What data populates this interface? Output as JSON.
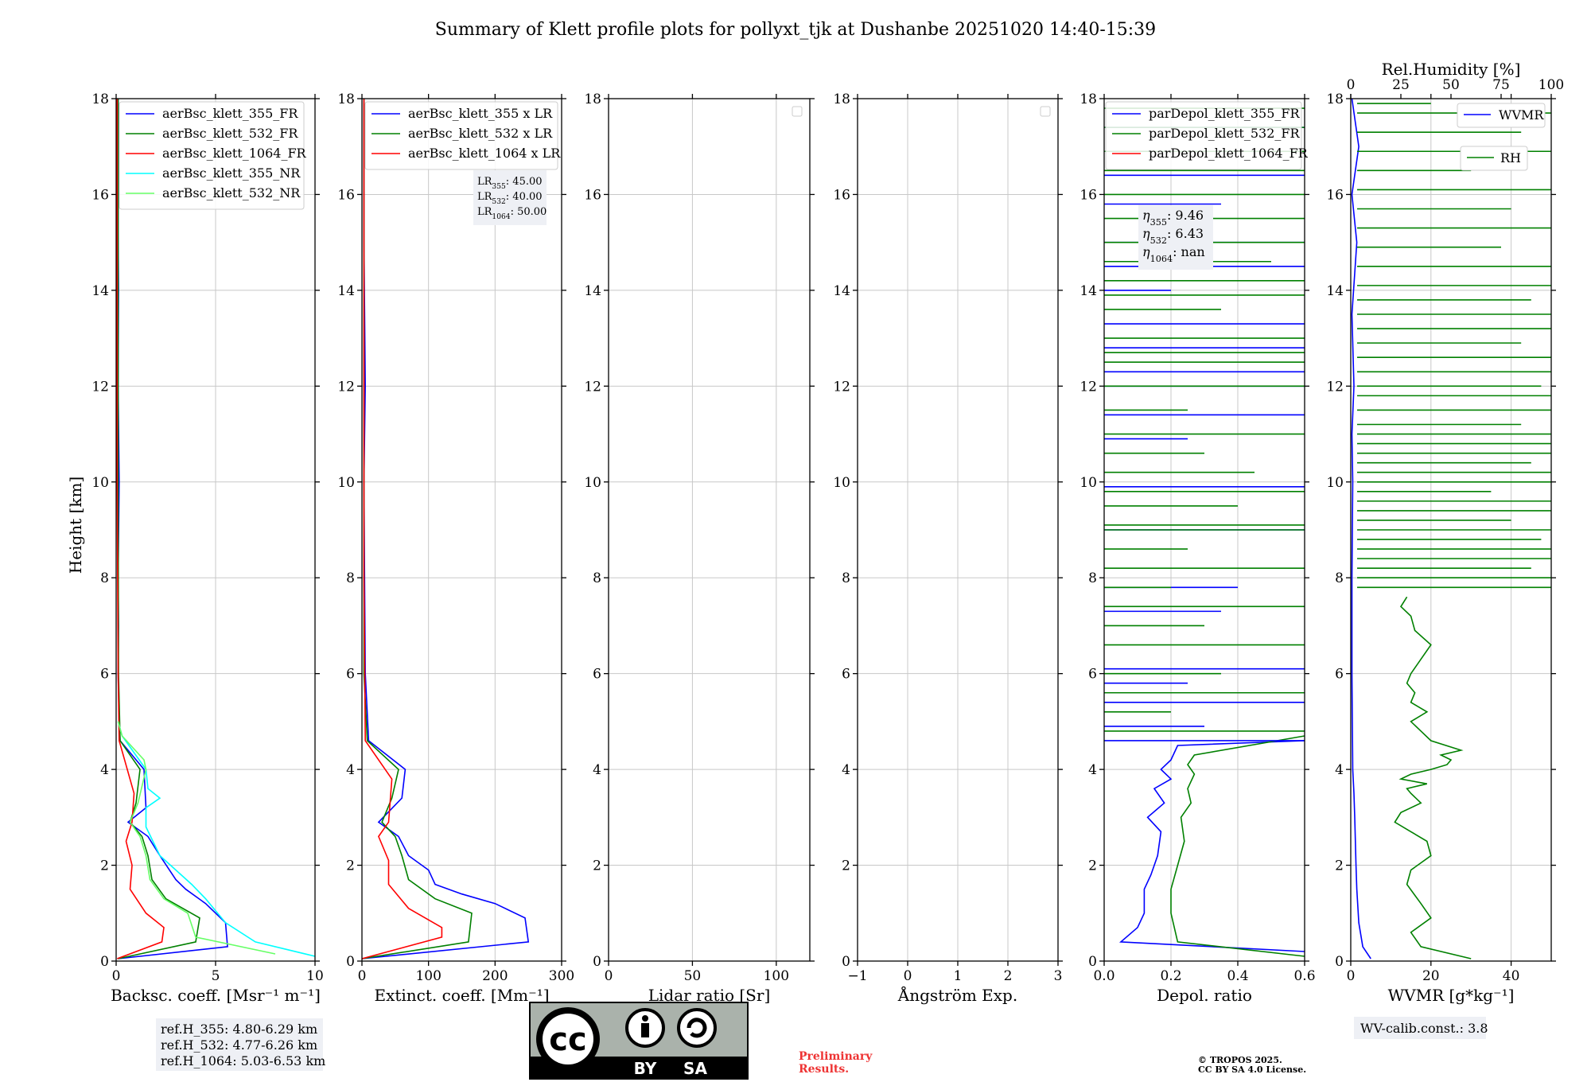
{
  "title": "Summary of Klett profile plots for pollyxt_tjk at Dushanbe 20251020 14:40-15:39",
  "ylabel": "Height [km]",
  "colors": {
    "b355": "#0000ff",
    "g532": "#008000",
    "r1064": "#ff0000",
    "c355": "#00ffff",
    "lg532": "#66ff66"
  },
  "chart_data": [
    {
      "type": "line",
      "id": "bsc",
      "xlabel": "Backsc. coeff. [Msr⁻¹ m⁻¹]",
      "ylabel": "Height [km]",
      "xlim": [
        0,
        10
      ],
      "ylim": [
        0,
        18
      ],
      "xticks": [
        "0",
        "5",
        "10"
      ],
      "xtick_values": [
        0,
        5,
        10
      ],
      "yticks": [
        "0",
        "2",
        "4",
        "6",
        "8",
        "10",
        "12",
        "14",
        "16",
        "18"
      ],
      "grid": true,
      "legend_position": "top-left",
      "series": [
        {
          "name": "aerBsc_klett_355_FR",
          "color": "#0000ff",
          "x": [
            0.1,
            5.6,
            5.5,
            4.5,
            3.5,
            3.0,
            2.2,
            1.6,
            0.6,
            1.5,
            1.4,
            0.2,
            0.15,
            0.1,
            0.12,
            0.1,
            0.15,
            0.1,
            0.12,
            0.1,
            0.1,
            0.1
          ],
          "y": [
            0.05,
            0.3,
            0.8,
            1.2,
            1.5,
            1.7,
            2.2,
            2.6,
            2.9,
            3.2,
            4.0,
            4.6,
            5.0,
            6.0,
            7.0,
            8.0,
            10.0,
            12.0,
            14.0,
            15.2,
            16.0,
            18.0
          ]
        },
        {
          "name": "aerBsc_klett_532_FR",
          "color": "#008000",
          "x": [
            0.1,
            4.0,
            4.2,
            2.5,
            1.8,
            1.6,
            1.3,
            0.7,
            1.0,
            1.2,
            0.2,
            0.12,
            0.1,
            0.1,
            0.1
          ],
          "y": [
            0.05,
            0.4,
            0.9,
            1.3,
            1.7,
            2.2,
            2.6,
            2.9,
            3.3,
            4.0,
            4.6,
            6.0,
            10.0,
            14.0,
            18.0
          ]
        },
        {
          "name": "aerBsc_klett_1064_FR",
          "color": "#ff0000",
          "x": [
            0.05,
            2.3,
            2.4,
            1.5,
            0.7,
            0.8,
            0.5,
            0.8,
            0.9,
            0.15,
            0.1,
            0.05,
            0.05
          ],
          "y": [
            0.05,
            0.4,
            0.7,
            1.0,
            1.5,
            2.0,
            2.5,
            2.9,
            3.5,
            4.6,
            6.0,
            10.0,
            18.0
          ]
        },
        {
          "name": "aerBsc_klett_355_NR",
          "color": "#00ffff",
          "x": [
            10.0,
            7.0,
            5.5,
            4.5,
            3.8,
            2.2,
            1.5,
            1.5,
            2.2,
            1.6,
            1.5,
            0.3,
            0.1
          ],
          "y": [
            0.1,
            0.4,
            0.8,
            1.3,
            1.6,
            2.2,
            2.8,
            3.2,
            3.4,
            3.6,
            4.0,
            4.7,
            5.0
          ]
        },
        {
          "name": "aerBsc_klett_532_NR",
          "color": "#66ff66",
          "x": [
            8.0,
            4.0,
            3.6,
            2.4,
            1.7,
            1.5,
            1.2,
            0.7,
            1.1,
            1.5,
            1.4,
            0.3,
            0.1
          ],
          "y": [
            0.15,
            0.5,
            1.0,
            1.3,
            1.7,
            2.2,
            2.6,
            2.9,
            3.3,
            4.0,
            4.2,
            4.7,
            5.0
          ]
        }
      ]
    },
    {
      "type": "line",
      "id": "ext",
      "xlabel": "Extinct. coeff. [Mm⁻¹]",
      "xlim": [
        0,
        300
      ],
      "xticks": [
        "0",
        "100",
        "200",
        "300"
      ],
      "xtick_values": [
        0,
        100,
        200,
        300
      ],
      "ylim": [
        0,
        18
      ],
      "yticks": [
        "0",
        "2",
        "4",
        "6",
        "8",
        "10",
        "12",
        "14",
        "16",
        "18"
      ],
      "grid": true,
      "legend_position": "top-left",
      "annotation": [
        {
          "label": "LR",
          "sub": "355",
          "value": ": 45.00"
        },
        {
          "label": "LR",
          "sub": "532",
          "value": ": 40.00"
        },
        {
          "label": "LR",
          "sub": "1064",
          "value": ": 50.00"
        }
      ],
      "series": [
        {
          "name": "aerBsc_klett_355 x LR",
          "color": "#0000ff",
          "x": [
            0,
            250,
            245,
            200,
            150,
            110,
            100,
            70,
            55,
            25,
            60,
            65,
            10,
            5,
            4,
            3,
            5,
            3,
            3
          ],
          "y": [
            0.05,
            0.4,
            0.9,
            1.2,
            1.4,
            1.6,
            1.9,
            2.2,
            2.6,
            2.9,
            3.4,
            4.0,
            4.6,
            6.0,
            8.0,
            10.0,
            12.0,
            15.0,
            18.0
          ]
        },
        {
          "name": "aerBsc_klett_532 x LR",
          "color": "#008000",
          "x": [
            0,
            160,
            165,
            110,
            70,
            60,
            50,
            30,
            45,
            55,
            8,
            3,
            3,
            3
          ],
          "y": [
            0.05,
            0.4,
            1.0,
            1.3,
            1.7,
            2.2,
            2.6,
            2.9,
            3.4,
            4.0,
            4.6,
            6.0,
            10.0,
            18.0
          ]
        },
        {
          "name": "aerBsc_klett_1064 x LR",
          "color": "#ff0000",
          "x": [
            0,
            120,
            120,
            70,
            40,
            40,
            25,
            40,
            45,
            5,
            3,
            3
          ],
          "y": [
            0.05,
            0.5,
            0.7,
            1.1,
            1.6,
            2.1,
            2.6,
            2.9,
            3.8,
            4.6,
            8.0,
            18.0
          ]
        }
      ]
    },
    {
      "type": "line",
      "id": "lr",
      "xlabel": "Lidar ratio [Sr]",
      "xlim": [
        0,
        120
      ],
      "xticks": [
        "0",
        "50",
        "100"
      ],
      "xtick_values": [
        0,
        50,
        100
      ],
      "ylim": [
        0,
        18
      ],
      "yticks": [
        "0",
        "2",
        "4",
        "6",
        "8",
        "10",
        "12",
        "14",
        "16",
        "18"
      ],
      "grid": true,
      "legend_position": "top-right",
      "series": []
    },
    {
      "type": "line",
      "id": "ang",
      "xlabel": "Ångström Exp.",
      "xlim": [
        -1,
        3
      ],
      "xticks": [
        "−1",
        "0",
        "1",
        "2",
        "3"
      ],
      "xtick_values": [
        -1,
        0,
        1,
        2,
        3
      ],
      "ylim": [
        0,
        18
      ],
      "yticks": [
        "0",
        "2",
        "4",
        "6",
        "8",
        "10",
        "12",
        "14",
        "16",
        "18"
      ],
      "grid": true,
      "legend_position": "top-right",
      "series": []
    },
    {
      "type": "line",
      "id": "dep",
      "xlabel": "Depol. ratio",
      "xlim": [
        0,
        0.6
      ],
      "xticks": [
        "0.0",
        "0.2",
        "0.4",
        "0.6"
      ],
      "xtick_values": [
        0,
        0.2,
        0.4,
        0.6
      ],
      "ylim": [
        0,
        18
      ],
      "yticks": [
        "0",
        "2",
        "4",
        "6",
        "8",
        "10",
        "12",
        "14",
        "16",
        "18"
      ],
      "grid": true,
      "legend_position": "top-left",
      "annotation": [
        {
          "label": "η",
          "sub": "355",
          "value": ": 9.46"
        },
        {
          "label": "η",
          "sub": "532",
          "value": ": 6.43"
        },
        {
          "label": "η",
          "sub": "1064",
          "value": ": nan"
        }
      ],
      "series": [
        {
          "name": "parDepol_klett_355_FR",
          "color": "#0000ff",
          "x": [
            0.6,
            0.05,
            0.1,
            0.12,
            0.12,
            0.14,
            0.16,
            0.17,
            0.13,
            0.18,
            0.15,
            0.2,
            0.17,
            0.2,
            0.22,
            0.6
          ],
          "y": [
            0.2,
            0.4,
            0.7,
            1.0,
            1.5,
            1.8,
            2.2,
            2.7,
            3.0,
            3.3,
            3.6,
            3.8,
            4.0,
            4.2,
            4.5,
            4.6
          ]
        },
        {
          "name": "parDepol_klett_532_FR",
          "color": "#008000",
          "x": [
            0.6,
            0.22,
            0.2,
            0.2,
            0.22,
            0.24,
            0.23,
            0.26,
            0.25,
            0.27,
            0.25,
            0.27,
            0.6
          ],
          "y": [
            0.1,
            0.4,
            1.0,
            1.5,
            2.0,
            2.5,
            3.0,
            3.3,
            3.6,
            3.9,
            4.1,
            4.3,
            4.7
          ]
        }
      ],
      "spikes": [
        {
          "series": 0,
          "heights": [
            4.6,
            4.9,
            5.4,
            5.8,
            6.1,
            7.3,
            7.8,
            9.0,
            9.9,
            10.9,
            11.4,
            12.0,
            12.3,
            12.8,
            13.3,
            14.0,
            14.5,
            15.0,
            15.8,
            16.4,
            17.4
          ],
          "values": [
            0.6,
            0.3,
            0.6,
            0.25,
            0.6,
            0.35,
            0.4,
            0.6,
            0.6,
            0.25,
            0.6,
            0.6,
            0.6,
            0.6,
            0.6,
            0.2,
            0.6,
            0.6,
            0.35,
            0.6,
            0.6
          ]
        },
        {
          "series": 1,
          "heights": [
            4.8,
            5.2,
            5.6,
            6.0,
            6.6,
            7.0,
            7.4,
            7.8,
            8.2,
            8.6,
            9.0,
            9.1,
            9.5,
            9.8,
            10.2,
            10.6,
            11.0,
            11.5,
            12.0,
            12.5,
            12.7,
            13.0,
            13.6,
            13.9,
            14.2,
            14.6,
            15.0,
            15.5,
            16.0,
            16.5,
            16.9,
            17.4,
            17.8
          ],
          "values": [
            0.6,
            0.2,
            0.6,
            0.35,
            0.6,
            0.3,
            0.6,
            0.2,
            0.6,
            0.25,
            0.6,
            0.6,
            0.4,
            0.6,
            0.45,
            0.3,
            0.6,
            0.25,
            0.6,
            0.6,
            0.6,
            0.6,
            0.35,
            0.6,
            0.6,
            0.5,
            0.6,
            0.6,
            0.6,
            0.6,
            0.6,
            0.6,
            0.6
          ]
        }
      ]
    },
    {
      "type": "line",
      "id": "wv",
      "xlabel": "WVMR [g*kg⁻¹]",
      "xlim": [
        0,
        50
      ],
      "xticks": [
        "0",
        "20",
        "40"
      ],
      "xtick_values": [
        0,
        20,
        40
      ],
      "top_xlabel": "Rel.Humidity [%]",
      "top_xlim": [
        0,
        100
      ],
      "top_xticks": [
        "0",
        "25",
        "50",
        "75",
        "100"
      ],
      "top_xtick_values": [
        0,
        25,
        50,
        75,
        100
      ],
      "ylim": [
        0,
        18
      ],
      "yticks": [
        "0",
        "2",
        "4",
        "6",
        "8",
        "10",
        "12",
        "14",
        "16",
        "18"
      ],
      "grid": true,
      "legend_position": "top-right",
      "series": [
        {
          "name": "WVMR",
          "axis": "bottom",
          "color": "#0000ff",
          "x": [
            5,
            3,
            2,
            1.5,
            1.3,
            1.0,
            0.8,
            0.5,
            0.4,
            0.3,
            0.3,
            0.5,
            0.3,
            0.8,
            0.3,
            1.5,
            0.3,
            2,
            0.3
          ],
          "y": [
            0.05,
            0.3,
            0.8,
            1.5,
            2.0,
            3.0,
            3.5,
            4.0,
            5.0,
            6.0,
            8.0,
            10.0,
            11.0,
            12.0,
            13.5,
            15.0,
            16.0,
            17.0,
            18.0
          ]
        },
        {
          "name": "RH",
          "axis": "top",
          "color": "#008000",
          "x": [
            60,
            35,
            30,
            40,
            35,
            28,
            30,
            40,
            38,
            30,
            22,
            25,
            35,
            30,
            28,
            38,
            25,
            30,
            40,
            48,
            50,
            45,
            55,
            40,
            35,
            30,
            38,
            30,
            32,
            28,
            30,
            35,
            40,
            32,
            30,
            25,
            28
          ],
          "y": [
            0.05,
            0.3,
            0.6,
            0.9,
            1.2,
            1.6,
            1.9,
            2.2,
            2.5,
            2.7,
            2.9,
            3.1,
            3.3,
            3.5,
            3.6,
            3.7,
            3.8,
            3.9,
            4.0,
            4.1,
            4.2,
            4.3,
            4.4,
            4.6,
            4.8,
            5.0,
            5.2,
            5.4,
            5.6,
            5.8,
            6.0,
            6.3,
            6.6,
            6.9,
            7.2,
            7.4,
            7.6
          ]
        }
      ],
      "rh_spikes": {
        "heights": [
          7.8,
          8.0,
          8.2,
          8.4,
          8.6,
          8.8,
          9.0,
          9.2,
          9.4,
          9.6,
          9.8,
          10.0,
          10.2,
          10.4,
          10.6,
          10.8,
          11.0,
          11.2,
          11.5,
          11.8,
          12.0,
          12.3,
          12.6,
          12.9,
          13.2,
          13.5,
          13.8,
          14.1,
          14.5,
          14.9,
          15.3,
          15.7,
          16.1,
          16.5,
          16.9,
          17.3,
          17.7,
          17.9
        ],
        "values": [
          100,
          100,
          90,
          100,
          100,
          95,
          100,
          80,
          100,
          100,
          70,
          100,
          100,
          90,
          100,
          100,
          100,
          85,
          100,
          100,
          95,
          100,
          100,
          85,
          100,
          100,
          90,
          100,
          100,
          75,
          100,
          80,
          100,
          60,
          100,
          85,
          100,
          40
        ]
      }
    }
  ],
  "legends": {
    "bsc": [
      "aerBsc_klett_355_FR",
      "aerBsc_klett_532_FR",
      "aerBsc_klett_1064_FR",
      "aerBsc_klett_355_NR",
      "aerBsc_klett_532_NR"
    ],
    "ext": [
      "aerBsc_klett_355 x LR",
      "aerBsc_klett_532 x LR",
      "aerBsc_klett_1064 x LR"
    ],
    "dep": [
      "parDepol_klett_355_FR",
      "parDepol_klett_532_FR",
      "parDepol_klett_1064_FR"
    ],
    "wv_wvmr": "WVMR",
    "wv_rh": "RH"
  },
  "refh": [
    "ref.H_355: 4.80-6.29 km",
    "ref.H_532: 4.77-6.26 km",
    "ref.H_1064: 5.03-6.53 km"
  ],
  "wv_calib": "WV-calib.const.: 3.8",
  "license": {
    "cc": "cc",
    "by": "BY",
    "sa": "SA"
  },
  "preliminary": [
    "Preliminary",
    "Results."
  ],
  "copyright": [
    "© TROPOS 2025.",
    "CC BY SA 4.0 License."
  ]
}
